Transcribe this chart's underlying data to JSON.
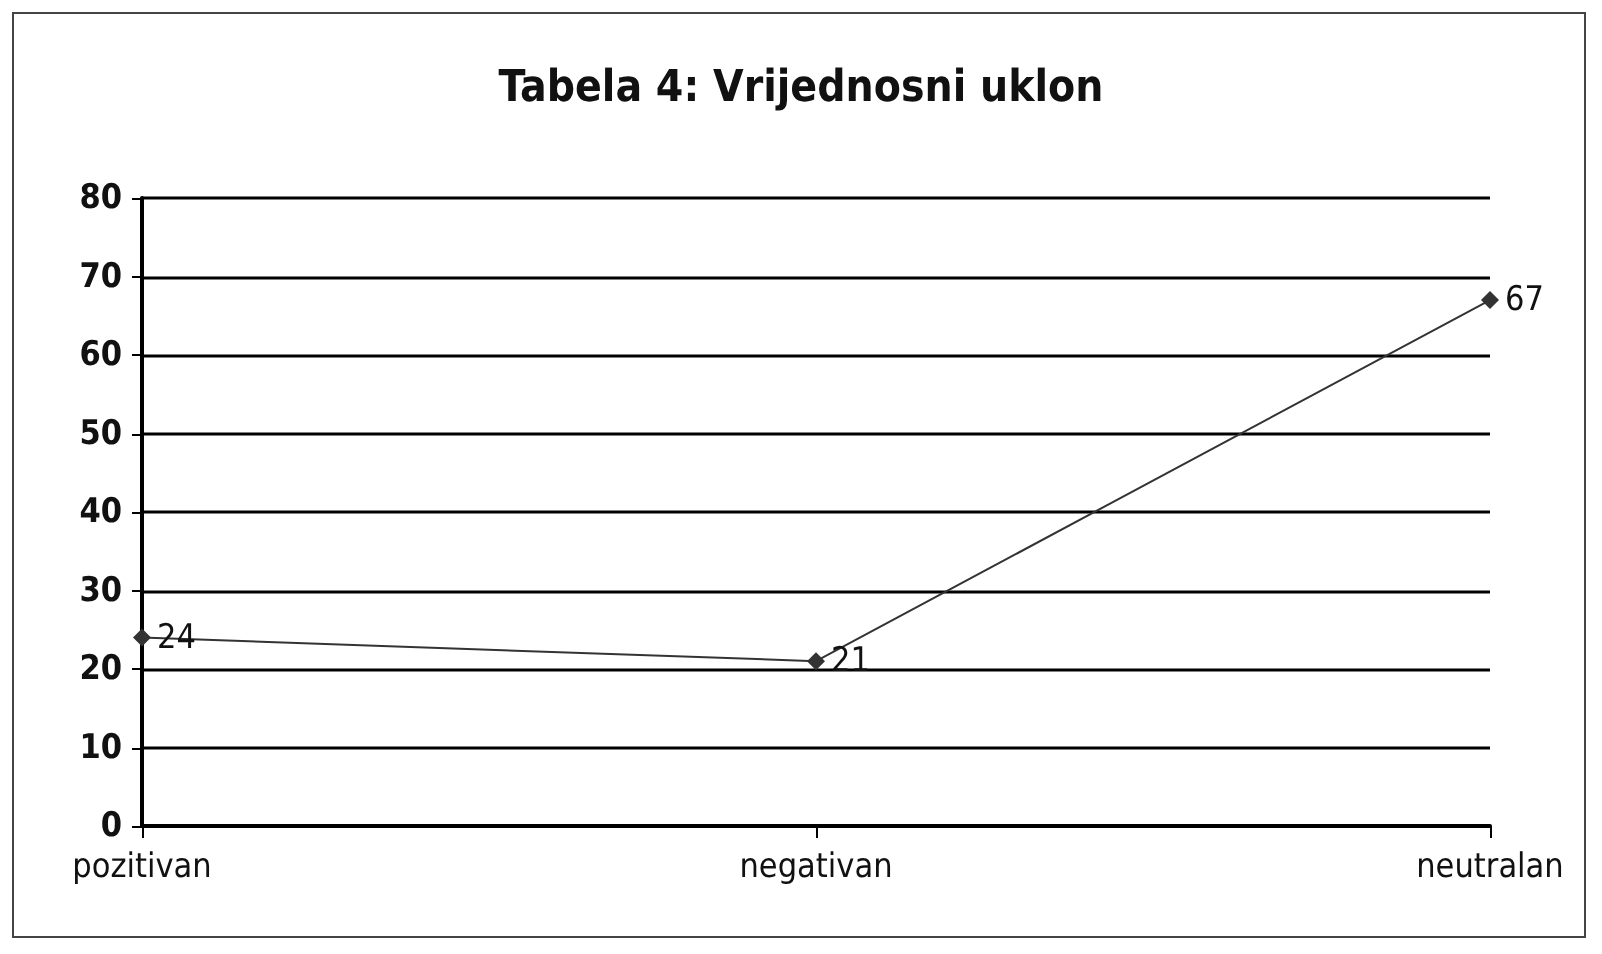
{
  "chart_data": {
    "type": "line",
    "title": "Tabela 4: Vrijednosni uklon",
    "categories": [
      "pozitivan",
      "negativan",
      "neutralan"
    ],
    "values": [
      24,
      21,
      67
    ],
    "color": "#333333",
    "ylim": [
      0,
      80
    ],
    "yticks": [
      0,
      10,
      20,
      30,
      40,
      50,
      60,
      70,
      80
    ],
    "grid": "y",
    "marker": "diamond",
    "data_labels": true
  }
}
